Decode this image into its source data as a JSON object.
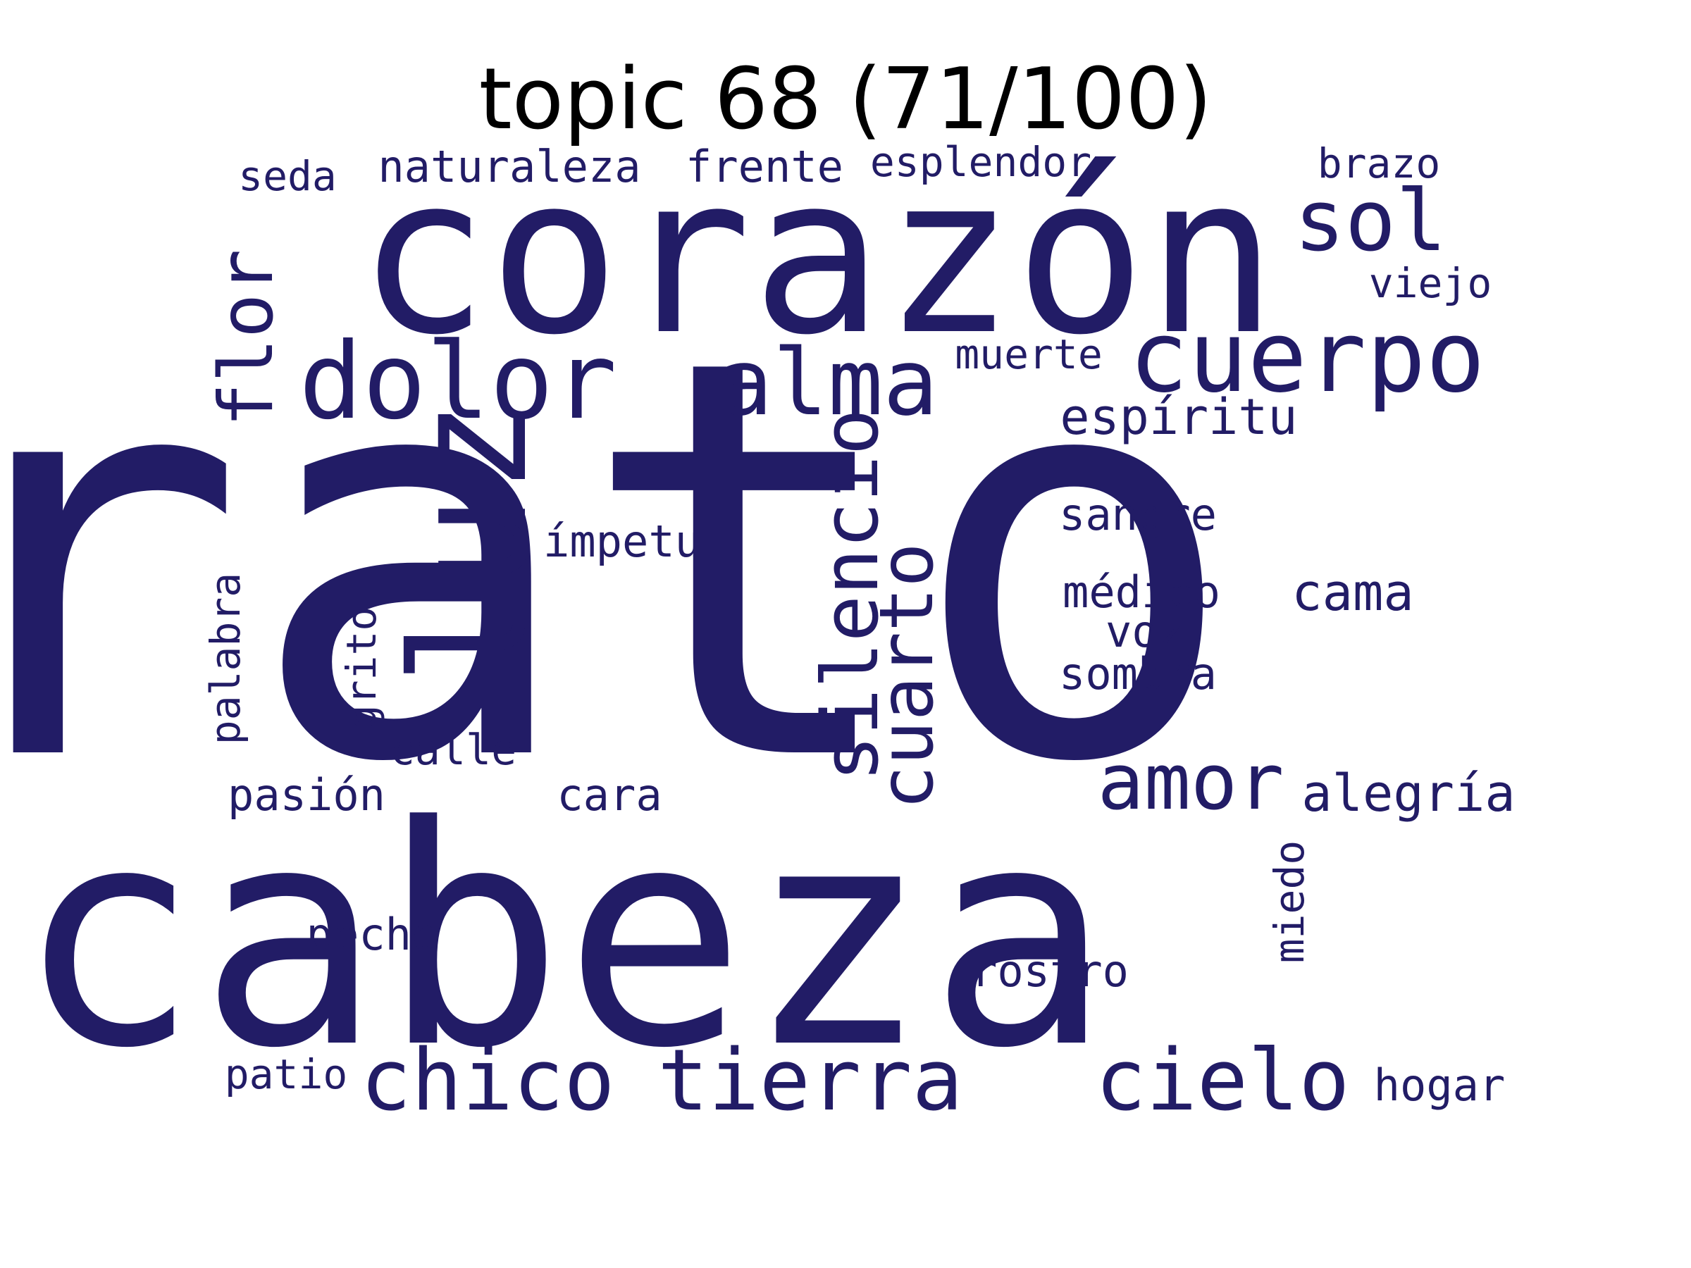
{
  "title": "topic 68 (71/100)",
  "colors": {
    "background": "#ffffff",
    "title": "#000000",
    "word": "#221c66"
  },
  "words": [
    "rato",
    "cabeza",
    "corazón",
    "luz",
    "dolor",
    "alma",
    "cuerpo",
    "flor",
    "sol",
    "silencio",
    "cuarto",
    "amor",
    "chico",
    "tierra",
    "cielo",
    "espíritu",
    "alegría",
    "cama",
    "sangre",
    "médico",
    "voz",
    "sombra",
    "ímpetu",
    "palabra",
    "grito",
    "calle",
    "pasión",
    "cara",
    "pecho",
    "miedo",
    "rostro",
    "patio",
    "hogar",
    "seda",
    "naturaleza",
    "frente",
    "esplendor",
    "brazo",
    "viejo",
    "muerte"
  ]
}
